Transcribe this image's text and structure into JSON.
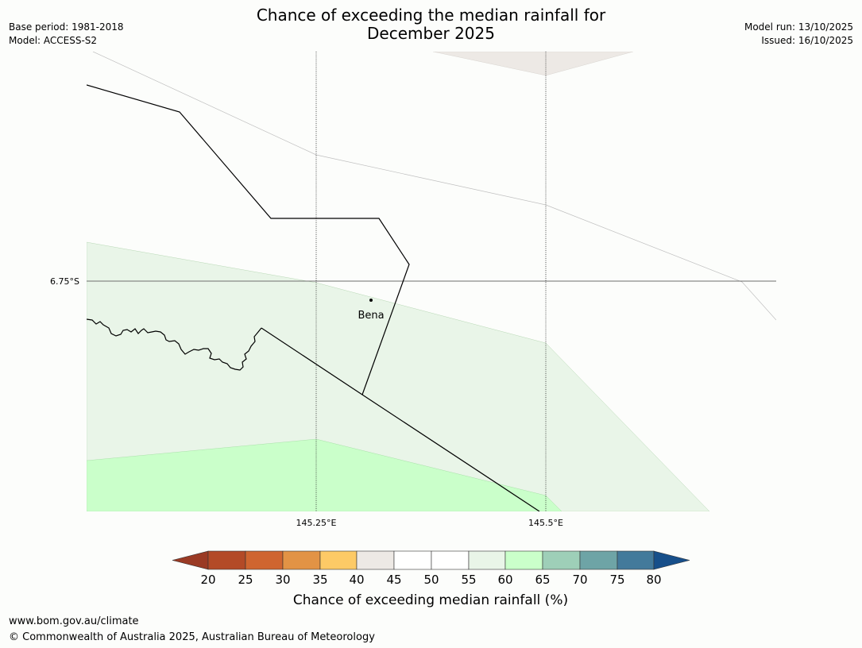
{
  "header": {
    "title_line1": "Chance of exceeding the median rainfall for",
    "title_line2": "December 2025",
    "base_period": "Base period: 1981-2018",
    "model": "Model: ACCESS-S2",
    "model_run": "Model run: 13/10/2025",
    "issued": "Issued: 16/10/2025"
  },
  "map": {
    "lat_label": "6.75°S",
    "lon_labels": [
      "145.25°E",
      "145.5°E"
    ],
    "place_label": "Bena"
  },
  "legend": {
    "title": "Chance of exceeding median rainfall (%)",
    "ticks": [
      "20",
      "25",
      "30",
      "35",
      "40",
      "45",
      "50",
      "55",
      "60",
      "65",
      "70",
      "75",
      "80"
    ],
    "colors": {
      "below_20": "#9a3a24",
      "20_25": "#b34a27",
      "25_30": "#cf6530",
      "30_35": "#e29345",
      "35_40": "#fdca66",
      "40_45": "#ede9e5",
      "45_50": "#ffffff",
      "50_55": "#ffffff",
      "55_60": "#e9f5e8",
      "60_65": "#caffca",
      "65_70": "#9ecfb8",
      "70_75": "#6ea4a6",
      "75_80": "#437a9b",
      "above_80": "#174f8a"
    }
  },
  "footer": {
    "url": "www.bom.gov.au/climate",
    "copyright": "© Commonwealth of Australia 2025, Australian Bureau of Meteorology"
  }
}
